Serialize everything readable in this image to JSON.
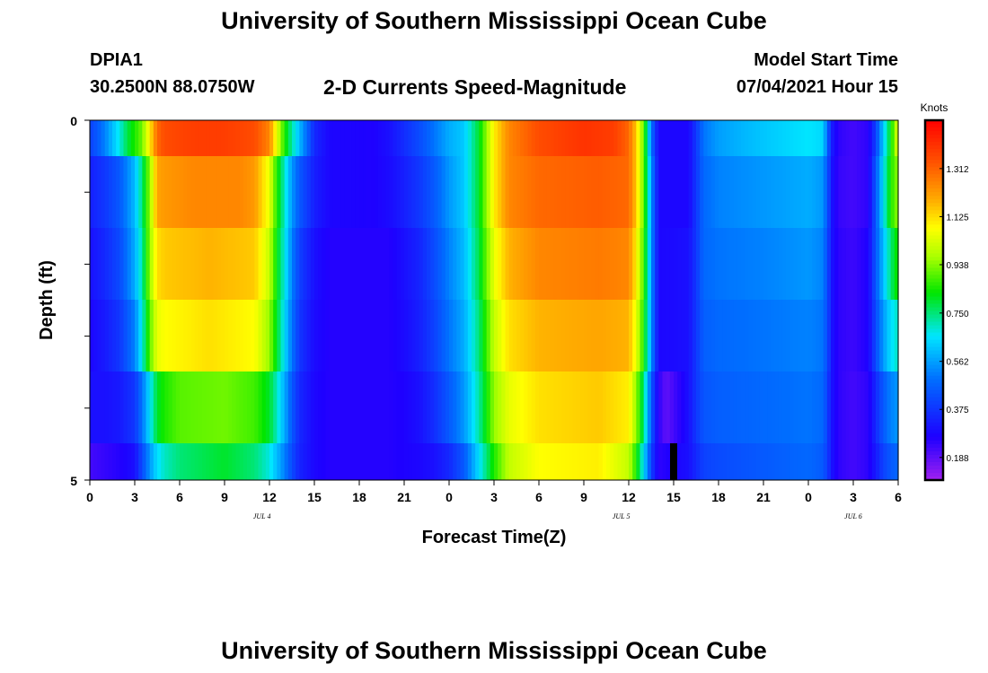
{
  "header": {
    "title": "University of Southern Mississippi Ocean Cube",
    "station_id": "DPIA1",
    "station_coords": "30.2500N  88.0750W",
    "plot_title": "2-D Currents Speed-Magnitude",
    "model_start_label": "Model Start Time",
    "model_start_value": "07/04/2021 Hour 15"
  },
  "footer": {
    "title": "University of Southern Mississippi Ocean Cube"
  },
  "colors": {
    "current_time_marker": "#000000",
    "background": "#ffffff"
  },
  "chart_data": {
    "type": "heatmap",
    "xlabel": "Forecast Time(Z)",
    "ylabel": "Depth (ft)",
    "x_range_hours": [
      0,
      54
    ],
    "y_range_ft": [
      0,
      5
    ],
    "x_ticks": [
      "0",
      "3",
      "6",
      "9",
      "12",
      "15",
      "18",
      "21",
      "0",
      "3",
      "6",
      "9",
      "12",
      "15",
      "18",
      "21",
      "0",
      "3",
      "6"
    ],
    "y_tick_labels": [
      "0",
      "5"
    ],
    "date_labels": [
      {
        "label": "JUL 4",
        "hour": 11.5
      },
      {
        "label": "JUL 5",
        "hour": 35.5
      },
      {
        "label": "JUL 6",
        "hour": 51
      }
    ],
    "current_time_hour": 39,
    "colorbar": {
      "unit": "Knots",
      "min": 0.1,
      "max": 1.5,
      "ticks": [
        "1.312",
        "1.125",
        "0.938",
        "0.750",
        "0.562",
        "0.375",
        "0.188"
      ]
    },
    "depth_bands": [
      {
        "depth": "0.5",
        "keypoints": [
          [
            0,
            0.4
          ],
          [
            0.5,
            0.45
          ],
          [
            1,
            0.52
          ],
          [
            1.5,
            0.6
          ],
          [
            2,
            0.68
          ],
          [
            2.5,
            0.78
          ],
          [
            3,
            0.85
          ],
          [
            3.5,
            0.92
          ],
          [
            4,
            1.1
          ],
          [
            4.5,
            1.3
          ],
          [
            5,
            1.35
          ],
          [
            7,
            1.38
          ],
          [
            9,
            1.38
          ],
          [
            11,
            1.35
          ],
          [
            12,
            1.25
          ],
          [
            12.5,
            1.05
          ],
          [
            13,
            0.85
          ],
          [
            13.5,
            0.72
          ],
          [
            14,
            0.6
          ],
          [
            14.5,
            0.48
          ],
          [
            15,
            0.35
          ],
          [
            16,
            0.28
          ],
          [
            19,
            0.27
          ],
          [
            20,
            0.3
          ],
          [
            21,
            0.36
          ],
          [
            22,
            0.42
          ],
          [
            23,
            0.5
          ],
          [
            24,
            0.58
          ],
          [
            25,
            0.62
          ],
          [
            26,
            0.8
          ],
          [
            27,
            1.1
          ],
          [
            28,
            1.25
          ],
          [
            30,
            1.35
          ],
          [
            33,
            1.4
          ],
          [
            35,
            1.38
          ],
          [
            36,
            1.3
          ],
          [
            36.5,
            1.15
          ],
          [
            37,
            0.9
          ],
          [
            37.5,
            0.5
          ],
          [
            38,
            0.28
          ],
          [
            40,
            0.28
          ],
          [
            40.5,
            0.38
          ],
          [
            41,
            0.5
          ],
          [
            42,
            0.56
          ],
          [
            44,
            0.6
          ],
          [
            48,
            0.66
          ],
          [
            49,
            0.64
          ],
          [
            49.3,
            0.45
          ],
          [
            49.6,
            0.32
          ],
          [
            50,
            0.25
          ],
          [
            51,
            0.22
          ],
          [
            52,
            0.25
          ],
          [
            52.5,
            0.4
          ],
          [
            53,
            0.62
          ],
          [
            53.5,
            0.82
          ],
          [
            54,
            1.05
          ]
        ]
      },
      {
        "depth": "1.5",
        "keypoints": [
          [
            0,
            0.33
          ],
          [
            1,
            0.38
          ],
          [
            2,
            0.45
          ],
          [
            3,
            0.6
          ],
          [
            3.5,
            0.75
          ],
          [
            4,
            0.95
          ],
          [
            4.5,
            1.2
          ],
          [
            5,
            1.22
          ],
          [
            7,
            1.25
          ],
          [
            10,
            1.25
          ],
          [
            11,
            1.22
          ],
          [
            12,
            1.05
          ],
          [
            12.5,
            0.85
          ],
          [
            13,
            0.7
          ],
          [
            13.5,
            0.55
          ],
          [
            14,
            0.45
          ],
          [
            15,
            0.33
          ],
          [
            16,
            0.28
          ],
          [
            19,
            0.27
          ],
          [
            20,
            0.29
          ],
          [
            21,
            0.33
          ],
          [
            22,
            0.38
          ],
          [
            23,
            0.45
          ],
          [
            24,
            0.55
          ],
          [
            25,
            0.62
          ],
          [
            26,
            0.8
          ],
          [
            27,
            1.1
          ],
          [
            28,
            1.25
          ],
          [
            30,
            1.3
          ],
          [
            34,
            1.32
          ],
          [
            36,
            1.3
          ],
          [
            36.5,
            1.15
          ],
          [
            37,
            0.9
          ],
          [
            37.5,
            0.55
          ],
          [
            38,
            0.28
          ],
          [
            40,
            0.28
          ],
          [
            40.5,
            0.38
          ],
          [
            41,
            0.48
          ],
          [
            42,
            0.52
          ],
          [
            45,
            0.55
          ],
          [
            48,
            0.58
          ],
          [
            49,
            0.55
          ],
          [
            49.3,
            0.42
          ],
          [
            49.6,
            0.3
          ],
          [
            50,
            0.24
          ],
          [
            51,
            0.22
          ],
          [
            52,
            0.25
          ],
          [
            52.5,
            0.45
          ],
          [
            53,
            0.65
          ],
          [
            53.5,
            0.85
          ],
          [
            54,
            0.95
          ]
        ]
      },
      {
        "depth": "2.5",
        "keypoints": [
          [
            0,
            0.3
          ],
          [
            1,
            0.35
          ],
          [
            2,
            0.42
          ],
          [
            3,
            0.58
          ],
          [
            3.5,
            0.72
          ],
          [
            4,
            0.95
          ],
          [
            4.5,
            1.12
          ],
          [
            5,
            1.15
          ],
          [
            8,
            1.18
          ],
          [
            11,
            1.15
          ],
          [
            12,
            1.0
          ],
          [
            12.5,
            0.82
          ],
          [
            13,
            0.68
          ],
          [
            13.5,
            0.52
          ],
          [
            14,
            0.4
          ],
          [
            15,
            0.3
          ],
          [
            16,
            0.26
          ],
          [
            20,
            0.26
          ],
          [
            21,
            0.3
          ],
          [
            22,
            0.34
          ],
          [
            23,
            0.42
          ],
          [
            24,
            0.52
          ],
          [
            25,
            0.6
          ],
          [
            26,
            0.78
          ],
          [
            27,
            1.05
          ],
          [
            28,
            1.18
          ],
          [
            30,
            1.25
          ],
          [
            34,
            1.27
          ],
          [
            36,
            1.25
          ],
          [
            36.5,
            1.1
          ],
          [
            37,
            0.88
          ],
          [
            37.5,
            0.55
          ],
          [
            38,
            0.28
          ],
          [
            40,
            0.3
          ],
          [
            40.5,
            0.38
          ],
          [
            41,
            0.48
          ],
          [
            42,
            0.5
          ],
          [
            45,
            0.52
          ],
          [
            48,
            0.55
          ],
          [
            49,
            0.52
          ],
          [
            49.3,
            0.4
          ],
          [
            49.6,
            0.3
          ],
          [
            50,
            0.25
          ],
          [
            51,
            0.23
          ],
          [
            52,
            0.27
          ],
          [
            52.5,
            0.45
          ],
          [
            53,
            0.6
          ],
          [
            53.5,
            0.75
          ],
          [
            54,
            0.85
          ]
        ]
      },
      {
        "depth": "3.5",
        "keypoints": [
          [
            0,
            0.28
          ],
          [
            1,
            0.32
          ],
          [
            2,
            0.38
          ],
          [
            3,
            0.52
          ],
          [
            3.5,
            0.68
          ],
          [
            4,
            0.9
          ],
          [
            4.5,
            1.05
          ],
          [
            5,
            1.08
          ],
          [
            8,
            1.12
          ],
          [
            11,
            1.08
          ],
          [
            12,
            0.95
          ],
          [
            12.5,
            0.8
          ],
          [
            13,
            0.65
          ],
          [
            13.5,
            0.5
          ],
          [
            14,
            0.38
          ],
          [
            15,
            0.29
          ],
          [
            16,
            0.26
          ],
          [
            20,
            0.26
          ],
          [
            21,
            0.29
          ],
          [
            22,
            0.33
          ],
          [
            23,
            0.4
          ],
          [
            24,
            0.5
          ],
          [
            25,
            0.58
          ],
          [
            26,
            0.75
          ],
          [
            27,
            1.0
          ],
          [
            28,
            1.12
          ],
          [
            30,
            1.18
          ],
          [
            34,
            1.2
          ],
          [
            36,
            1.18
          ],
          [
            36.5,
            1.05
          ],
          [
            37,
            0.85
          ],
          [
            37.5,
            0.55
          ],
          [
            38,
            0.28
          ],
          [
            40,
            0.3
          ],
          [
            40.5,
            0.38
          ],
          [
            41,
            0.46
          ],
          [
            42,
            0.48
          ],
          [
            45,
            0.5
          ],
          [
            48,
            0.52
          ],
          [
            49,
            0.5
          ],
          [
            49.3,
            0.4
          ],
          [
            49.6,
            0.3
          ],
          [
            50,
            0.25
          ],
          [
            51,
            0.23
          ],
          [
            52,
            0.27
          ],
          [
            52.5,
            0.42
          ],
          [
            53,
            0.55
          ],
          [
            53.5,
            0.65
          ],
          [
            54,
            0.7
          ]
        ]
      },
      {
        "depth": "4.5",
        "keypoints": [
          [
            0,
            0.3
          ],
          [
            1,
            0.3
          ],
          [
            2,
            0.32
          ],
          [
            3,
            0.38
          ],
          [
            3.5,
            0.5
          ],
          [
            4,
            0.65
          ],
          [
            4.5,
            0.8
          ],
          [
            5,
            0.85
          ],
          [
            6,
            0.9
          ],
          [
            9,
            0.92
          ],
          [
            11,
            0.88
          ],
          [
            12,
            0.8
          ],
          [
            12.5,
            0.7
          ],
          [
            13,
            0.58
          ],
          [
            13.5,
            0.45
          ],
          [
            14,
            0.35
          ],
          [
            15,
            0.28
          ],
          [
            16,
            0.26
          ],
          [
            20,
            0.26
          ],
          [
            21,
            0.27
          ],
          [
            22,
            0.3
          ],
          [
            23,
            0.36
          ],
          [
            24,
            0.45
          ],
          [
            25,
            0.55
          ],
          [
            26,
            0.72
          ],
          [
            27,
            0.95
          ],
          [
            28,
            1.05
          ],
          [
            30,
            1.12
          ],
          [
            34,
            1.15
          ],
          [
            36,
            1.1
          ],
          [
            36.5,
            0.95
          ],
          [
            37,
            0.75
          ],
          [
            37.5,
            0.45
          ],
          [
            38,
            0.25
          ],
          [
            38.5,
            0.18
          ],
          [
            40,
            0.3
          ],
          [
            40.5,
            0.38
          ],
          [
            41,
            0.44
          ],
          [
            42,
            0.46
          ],
          [
            45,
            0.48
          ],
          [
            48,
            0.5
          ],
          [
            49,
            0.48
          ],
          [
            49.3,
            0.38
          ],
          [
            49.6,
            0.3
          ],
          [
            50,
            0.25
          ],
          [
            51,
            0.22
          ],
          [
            52,
            0.25
          ],
          [
            52.5,
            0.35
          ],
          [
            53,
            0.45
          ],
          [
            53.5,
            0.52
          ],
          [
            54,
            0.55
          ]
        ]
      },
      {
        "depth": "5.0",
        "keypoints": [
          [
            0,
            0.22
          ],
          [
            1,
            0.24
          ],
          [
            2,
            0.26
          ],
          [
            3,
            0.3
          ],
          [
            3.5,
            0.42
          ],
          [
            4,
            0.55
          ],
          [
            4.5,
            0.65
          ],
          [
            5,
            0.7
          ],
          [
            6,
            0.75
          ],
          [
            9,
            0.8
          ],
          [
            11,
            0.75
          ],
          [
            12,
            0.68
          ],
          [
            12.5,
            0.6
          ],
          [
            13,
            0.52
          ],
          [
            13.5,
            0.42
          ],
          [
            14,
            0.34
          ],
          [
            15,
            0.28
          ],
          [
            16,
            0.26
          ],
          [
            20,
            0.26
          ],
          [
            21,
            0.27
          ],
          [
            22,
            0.28
          ],
          [
            23,
            0.3
          ],
          [
            24,
            0.35
          ],
          [
            25,
            0.45
          ],
          [
            26,
            0.65
          ],
          [
            27,
            0.85
          ],
          [
            28,
            1.0
          ],
          [
            30,
            1.08
          ],
          [
            34,
            1.1
          ],
          [
            36,
            1.0
          ],
          [
            36.5,
            0.85
          ],
          [
            37,
            0.65
          ],
          [
            37.5,
            0.4
          ],
          [
            38,
            0.25
          ],
          [
            40,
            0.3
          ],
          [
            40.5,
            0.35
          ],
          [
            41,
            0.4
          ],
          [
            42,
            0.42
          ],
          [
            45,
            0.45
          ],
          [
            48,
            0.48
          ],
          [
            49,
            0.45
          ],
          [
            49.3,
            0.38
          ],
          [
            49.6,
            0.3
          ],
          [
            50,
            0.25
          ],
          [
            51,
            0.22
          ],
          [
            52,
            0.25
          ],
          [
            52.5,
            0.32
          ],
          [
            53,
            0.4
          ],
          [
            53.5,
            0.45
          ],
          [
            54,
            0.48
          ]
        ]
      }
    ]
  }
}
